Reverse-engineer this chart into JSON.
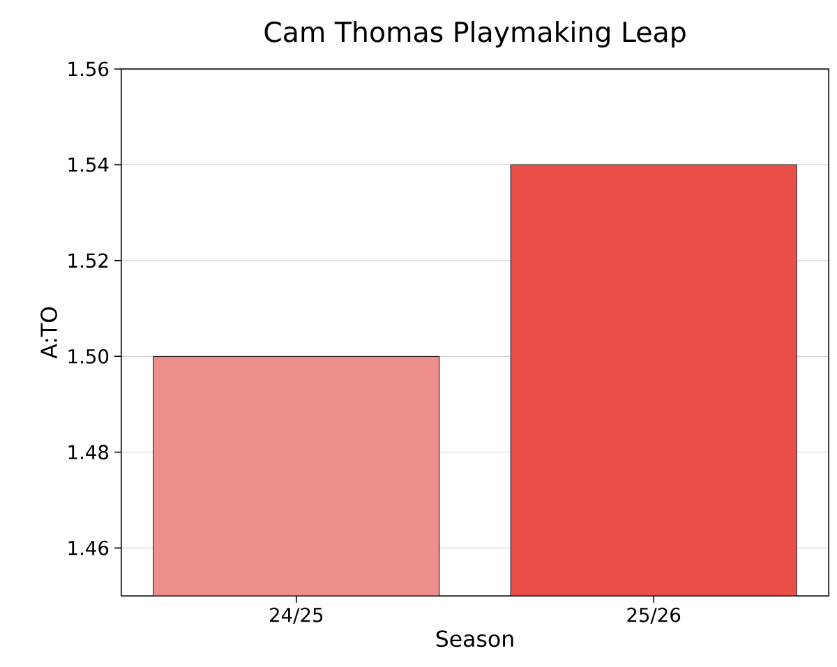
{
  "chart_data": {
    "type": "bar",
    "title": "Cam Thomas Playmaking Leap",
    "xlabel": "Season",
    "ylabel": "A:TO",
    "categories": [
      "24/25",
      "25/26"
    ],
    "values": [
      1.5,
      1.54
    ],
    "colors": [
      "#ee8f8b",
      "#e94f47"
    ],
    "ylim": [
      1.45,
      1.56
    ],
    "yticks": [
      {
        "value": 1.46,
        "label": "1.46"
      },
      {
        "value": 1.48,
        "label": "1.48"
      },
      {
        "value": 1.5,
        "label": "1.50"
      },
      {
        "value": 1.52,
        "label": "1.52"
      },
      {
        "value": 1.54,
        "label": "1.54"
      },
      {
        "value": 1.56,
        "label": "1.56"
      }
    ],
    "grid": "y"
  }
}
